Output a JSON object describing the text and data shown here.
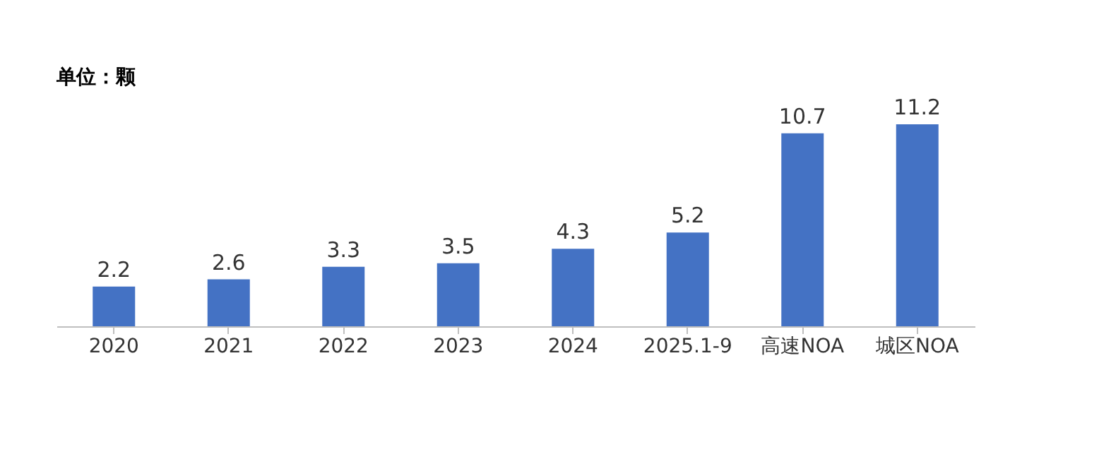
{
  "chart_data": {
    "type": "bar",
    "categories": [
      "2020",
      "2021",
      "2022",
      "2023",
      "2024",
      "2025.1-9",
      "高速NOA",
      "城区NOA"
    ],
    "values": [
      2.2,
      2.6,
      3.3,
      3.5,
      4.3,
      5.2,
      10.7,
      11.2
    ],
    "color": "#4472c4",
    "data_labels": true,
    "tick_labels": "x",
    "grid": false,
    "annotations": [
      "单位：颗"
    ]
  }
}
